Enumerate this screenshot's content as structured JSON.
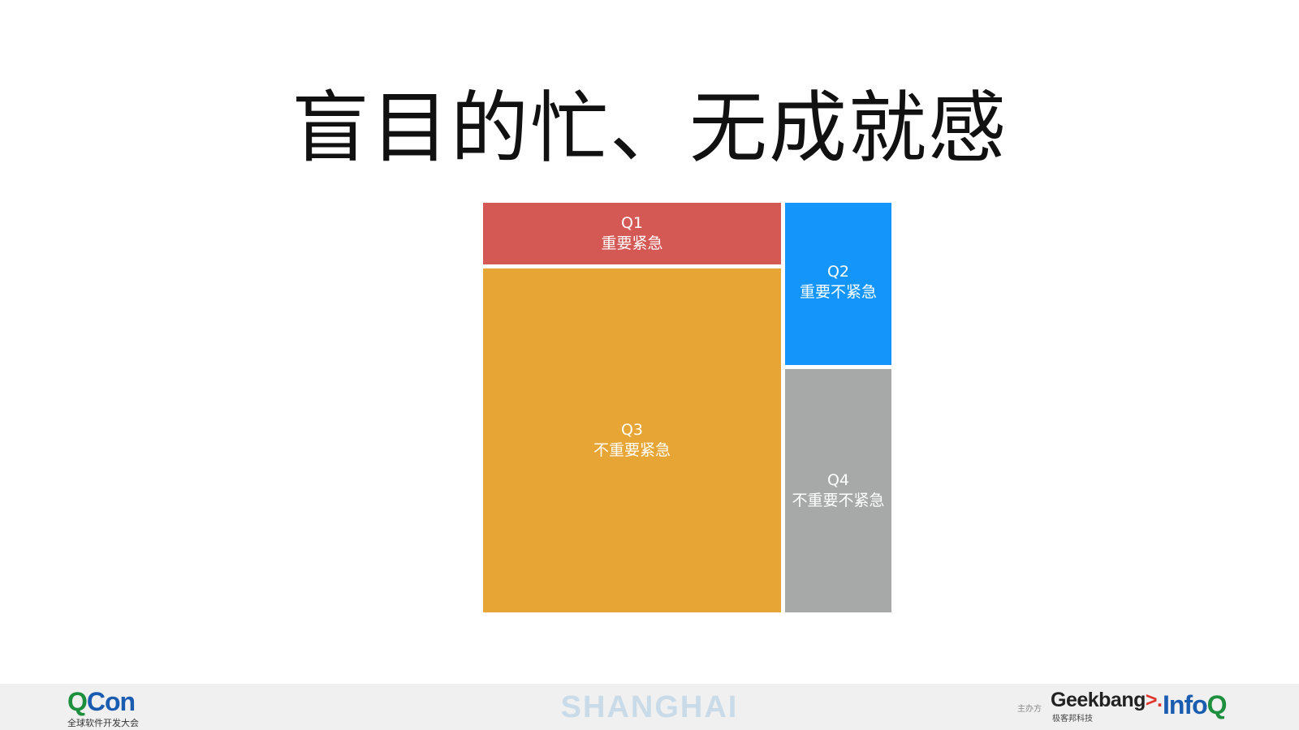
{
  "title": "盲目的忙、无成就感",
  "quadrants": [
    {
      "id": "Q1",
      "desc": "重要紧急",
      "color": "#d45854"
    },
    {
      "id": "Q2",
      "desc": "重要不紧急",
      "color": "#1495fa"
    },
    {
      "id": "Q3",
      "desc": "不重要紧急",
      "color": "#e6a534"
    },
    {
      "id": "Q4",
      "desc": "不重要不紧急",
      "color": "#a7a9a8"
    }
  ],
  "footer": {
    "qcon_brand_q": "Q",
    "qcon_brand_con": "Con",
    "qcon_subtitle": "全球软件开发大会",
    "city": "SHANGHAI",
    "organizer_label": "主办方",
    "geekbang_brand": "Geekbang",
    "geekbang_arrow": ">.",
    "geekbang_subtitle": "极客邦科技",
    "infoq_brand_info": "Info",
    "infoq_brand_q": "Q"
  }
}
